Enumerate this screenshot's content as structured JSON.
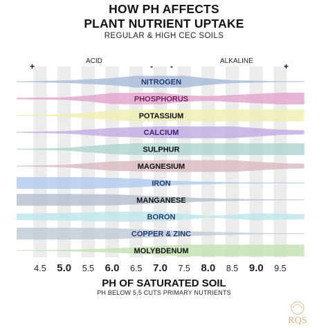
{
  "header": {
    "title_line1": "HOW PH AFFECTS",
    "title_line2": "PLANT NUTRIENT UPTAKE",
    "subtitle": "REGULAR & HIGH CEC SOILS"
  },
  "side_labels": {
    "acid": "ACID",
    "alkaline": "ALKALINE"
  },
  "signs": {
    "left": "+",
    "mid_left": "-",
    "mid_right": "-",
    "right": "+"
  },
  "chart_data": {
    "type": "bar",
    "title": "HOW PH AFFECTS PLANT NUTRIENT UPTAKE",
    "subtitle": "REGULAR & HIGH CEC SOILS",
    "xlabel": "PH OF SATURATED SOIL",
    "note": "PH BELOW 5,5 CUTS PRIMARY NUTRIENTS",
    "xlim": [
      4.5,
      9.5
    ],
    "x_ticks": [
      "4.5",
      "5.0",
      "5.5",
      "6.0",
      "6.5",
      "7.0",
      "7.5",
      "8.0",
      "8.5",
      "9.0",
      "9.5"
    ],
    "major_ticks": [
      "5.0",
      "6.0",
      "7.0",
      "8.0",
      "9.0"
    ],
    "series": [
      {
        "name": "NITROGEN",
        "color": "#a9bdd9",
        "text_color": "#1f3b73",
        "availability": [
          [
            4.0,
            0.04
          ],
          [
            5.0,
            0.2
          ],
          [
            6.0,
            0.6
          ],
          [
            6.5,
            1.0
          ],
          [
            7.5,
            1.0
          ],
          [
            8.0,
            0.55
          ],
          [
            8.5,
            0.25
          ],
          [
            9.5,
            0.06
          ],
          [
            10.0,
            0.03
          ]
        ]
      },
      {
        "name": "PHOSPHORUS",
        "color": "#e3a8ce",
        "text_color": "#7a2160",
        "availability": [
          [
            4.0,
            0.12
          ],
          [
            5.0,
            0.22
          ],
          [
            5.5,
            0.5
          ],
          [
            6.0,
            0.95
          ],
          [
            7.0,
            1.0
          ],
          [
            7.5,
            0.55
          ],
          [
            8.0,
            0.4
          ],
          [
            8.5,
            0.6
          ],
          [
            9.5,
            1.0
          ],
          [
            10.0,
            1.0
          ]
        ]
      },
      {
        "name": "POTASSIUM",
        "color": "#eef0b4",
        "text_color": "#111111",
        "availability": [
          [
            4.0,
            0.08
          ],
          [
            5.0,
            0.2
          ],
          [
            6.0,
            0.85
          ],
          [
            6.5,
            1.0
          ],
          [
            9.5,
            1.0
          ],
          [
            10.0,
            1.0
          ]
        ]
      },
      {
        "name": "CALCIUM",
        "color": "#c5aee3",
        "text_color": "#3c1f78",
        "availability": [
          [
            4.0,
            0.06
          ],
          [
            5.0,
            0.2
          ],
          [
            6.0,
            0.75
          ],
          [
            7.0,
            1.0
          ],
          [
            8.5,
            1.0
          ],
          [
            9.5,
            0.45
          ],
          [
            10.0,
            0.35
          ]
        ]
      },
      {
        "name": "SULPHUR",
        "color": "#b2d6d0",
        "text_color": "#111111",
        "availability": [
          [
            4.0,
            0.06
          ],
          [
            5.0,
            0.2
          ],
          [
            6.0,
            0.85
          ],
          [
            6.5,
            1.0
          ],
          [
            10.0,
            1.0
          ]
        ]
      },
      {
        "name": "MAGNESIUM",
        "color": "#dcbcc2",
        "text_color": "#111111",
        "availability": [
          [
            4.0,
            0.06
          ],
          [
            5.0,
            0.2
          ],
          [
            6.0,
            0.8
          ],
          [
            7.0,
            1.0
          ],
          [
            8.5,
            1.0
          ],
          [
            9.5,
            0.5
          ],
          [
            10.0,
            0.4
          ]
        ]
      },
      {
        "name": "IRON",
        "color": "#b4cdee",
        "text_color": "#1f3b73",
        "availability": [
          [
            4.0,
            1.0
          ],
          [
            5.5,
            1.0
          ],
          [
            6.5,
            0.75
          ],
          [
            7.5,
            0.3
          ],
          [
            8.5,
            0.12
          ],
          [
            10.0,
            0.04
          ]
        ]
      },
      {
        "name": "MANGANESE",
        "color": "#b7c2ce",
        "text_color": "#111111",
        "availability": [
          [
            4.0,
            1.0
          ],
          [
            5.0,
            1.0
          ],
          [
            6.0,
            0.95
          ],
          [
            7.0,
            0.6
          ],
          [
            8.0,
            0.25
          ],
          [
            9.0,
            0.1
          ],
          [
            10.0,
            0.04
          ]
        ]
      },
      {
        "name": "BORON",
        "color": "#bfe6ec",
        "text_color": "#1f3b73",
        "availability": [
          [
            4.0,
            0.55
          ],
          [
            5.0,
            0.65
          ],
          [
            6.0,
            0.85
          ],
          [
            7.0,
            0.85
          ],
          [
            7.5,
            0.5
          ],
          [
            8.0,
            0.15
          ],
          [
            8.5,
            0.35
          ],
          [
            9.0,
            0.6
          ],
          [
            9.5,
            0.5
          ],
          [
            10.0,
            0.45
          ]
        ]
      },
      {
        "name": "COPPER & ZINC",
        "color": "#c2ccd6",
        "text_color": "#1f3b73",
        "availability": [
          [
            4.0,
            1.0
          ],
          [
            5.0,
            1.0
          ],
          [
            6.0,
            0.95
          ],
          [
            7.0,
            0.6
          ],
          [
            8.0,
            0.3
          ],
          [
            9.0,
            0.1
          ],
          [
            10.0,
            0.04
          ]
        ]
      },
      {
        "name": "MOLYBDENUM",
        "color": "#c7e3b6",
        "text_color": "#111111",
        "availability": [
          [
            4.0,
            0.04
          ],
          [
            5.0,
            0.12
          ],
          [
            6.0,
            0.35
          ],
          [
            7.0,
            0.8
          ],
          [
            7.5,
            1.0
          ],
          [
            10.0,
            1.0
          ]
        ]
      }
    ]
  },
  "logo": {
    "text": "RQS"
  }
}
